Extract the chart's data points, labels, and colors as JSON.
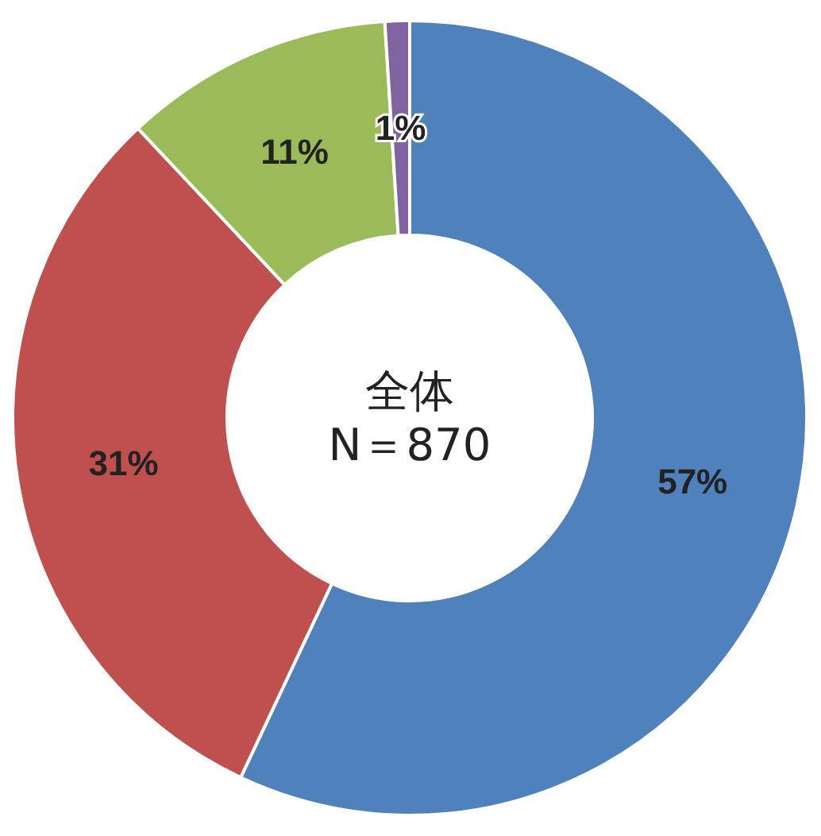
{
  "chart_data": {
    "type": "donut",
    "categories": [
      null,
      null,
      null,
      null
    ],
    "values": [
      57,
      31,
      11,
      1
    ],
    "colors": [
      "#4f81bd",
      "#c0504d",
      "#9bbb59",
      "#8064a2"
    ],
    "value_labels": [
      "57%",
      "31%",
      "11%",
      "1%"
    ],
    "annotations": [
      "全体",
      "N＝870"
    ]
  }
}
